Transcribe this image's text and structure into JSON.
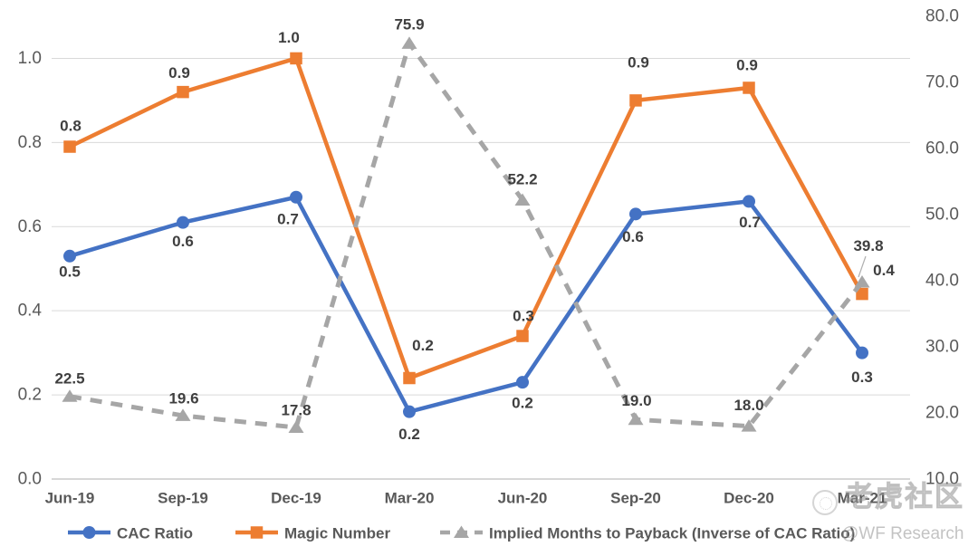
{
  "watermark": {
    "community": "老虎社区",
    "handle": "@WF Research"
  },
  "colors": {
    "cac_ratio": "#4472C4",
    "magic_number": "#ED7D31",
    "implied_months": "#A6A6A6",
    "gridline": "#D9D9D9",
    "axis_line": "#BFBFBF",
    "tick_label": "#595959",
    "data_label": "#3F3F3F"
  },
  "chart_data": {
    "type": "line",
    "title": "",
    "xlabel": "",
    "ylabel": "",
    "grid": true,
    "legend_position": "bottom",
    "categories": [
      "Jun-19",
      "Sep-19",
      "Dec-19",
      "Mar-20",
      "Jun-20",
      "Sep-20",
      "Dec-20",
      "Mar-21"
    ],
    "series": [
      {
        "name": "CAC Ratio",
        "axis": "left",
        "color": "#4472C4",
        "marker": "circle",
        "line_style": "solid",
        "values": [
          0.53,
          0.61,
          0.67,
          0.16,
          0.23,
          0.63,
          0.66,
          0.3
        ],
        "labels": [
          "0.5",
          "0.6",
          "0.7",
          "0.2",
          "0.2",
          "0.6",
          "0.7",
          "0.3"
        ]
      },
      {
        "name": "Magic Number",
        "axis": "left",
        "color": "#ED7D31",
        "marker": "square",
        "line_style": "solid",
        "values": [
          0.79,
          0.92,
          1.0,
          0.24,
          0.34,
          0.9,
          0.93,
          0.44
        ],
        "labels": [
          "0.8",
          "0.9",
          "1.0",
          "0.2",
          "0.3",
          "0.9",
          "0.9",
          "0.4"
        ]
      },
      {
        "name": "Implied Months to Payback (Inverse of CAC Ratio)",
        "axis": "right",
        "color": "#A6A6A6",
        "marker": "triangle",
        "line_style": "dashed",
        "values": [
          22.5,
          19.6,
          17.8,
          75.9,
          52.2,
          19.0,
          18.0,
          39.8
        ],
        "labels": [
          "22.5",
          "19.6",
          "17.8",
          "75.9",
          "52.2",
          "19.0",
          "18.0",
          "39.8"
        ]
      }
    ],
    "left_axis": {
      "min": 0.0,
      "max": 1.1,
      "tick_values": [
        0.0,
        0.2,
        0.4,
        0.6,
        0.8,
        1.0
      ],
      "tick_labels": [
        "0.0",
        "0.2",
        "0.4",
        "0.6",
        "0.8",
        "1.0"
      ]
    },
    "right_axis": {
      "min": 10.0,
      "max": 80.0,
      "tick_values": [
        10,
        20,
        30,
        40,
        50,
        60,
        70,
        80
      ],
      "tick_labels": [
        "10.0",
        "20.0",
        "30.0",
        "40.0",
        "50.0",
        "60.0",
        "70.0",
        "80.0"
      ]
    }
  }
}
